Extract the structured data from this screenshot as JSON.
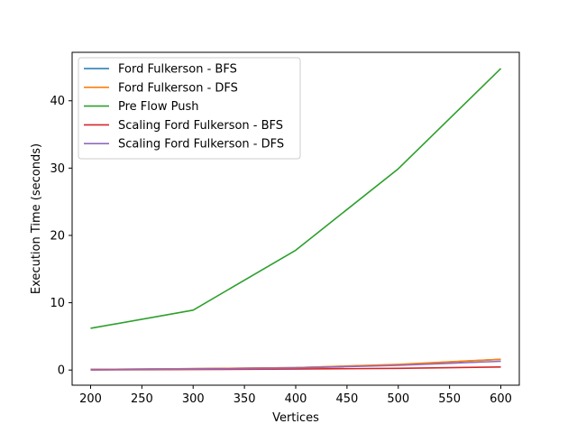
{
  "chart_data": {
    "type": "line",
    "title": "",
    "xlabel": "Vertices",
    "ylabel": "Execution Time (seconds)",
    "x": [
      200,
      300,
      400,
      500,
      600
    ],
    "xlim": [
      182,
      618
    ],
    "ylim": [
      -2.25,
      47.2
    ],
    "xticks": [
      200,
      250,
      300,
      350,
      400,
      450,
      500,
      550,
      600
    ],
    "yticks": [
      0,
      10,
      20,
      30,
      40
    ],
    "grid": false,
    "legend_position": "top-left",
    "series": [
      {
        "name": "Ford Fulkerson - BFS",
        "color": "#1f77b4",
        "values": [
          0.1,
          0.2,
          0.35,
          0.8,
          1.6
        ]
      },
      {
        "name": "Ford Fulkerson - DFS",
        "color": "#ff7f0e",
        "values": [
          0.1,
          0.2,
          0.35,
          0.85,
          1.6
        ]
      },
      {
        "name": "Pre Flow Push",
        "color": "#2ca02c",
        "values": [
          6.2,
          8.9,
          17.8,
          29.9,
          44.8
        ]
      },
      {
        "name": "Scaling Ford Fulkerson - BFS",
        "color": "#d62728",
        "values": [
          0.02,
          0.08,
          0.15,
          0.25,
          0.45
        ]
      },
      {
        "name": "Scaling Ford Fulkerson - DFS",
        "color": "#9467bd",
        "values": [
          0.05,
          0.15,
          0.3,
          0.7,
          1.3
        ]
      }
    ]
  }
}
